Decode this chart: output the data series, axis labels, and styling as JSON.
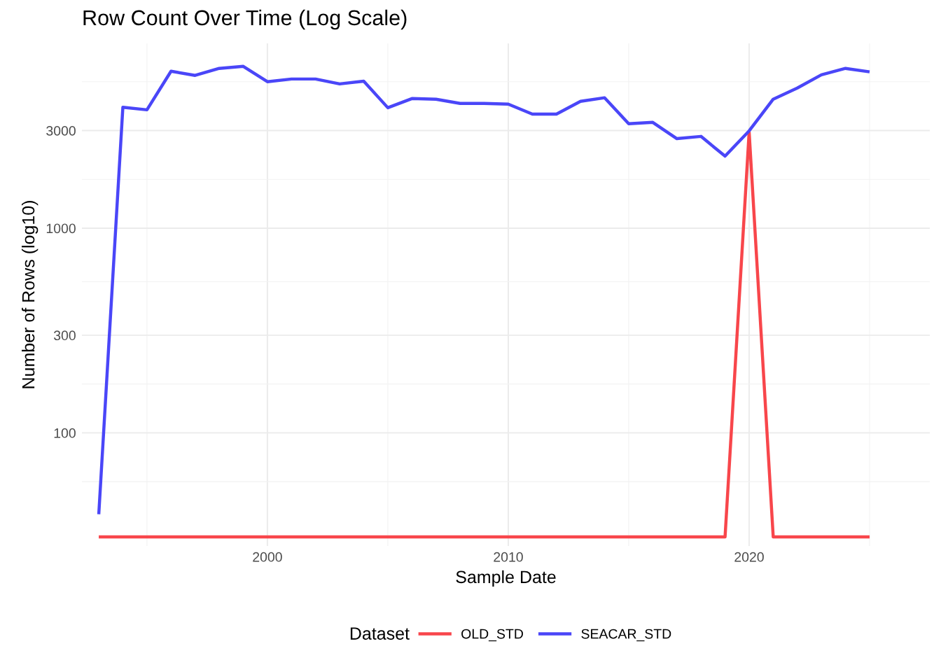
{
  "chart_data": {
    "type": "line",
    "title": "Row Count Over Time (Log Scale)",
    "xlabel": "Sample Date",
    "ylabel": "Number of Rows (log10)",
    "legend_title": "Dataset",
    "legend": "bottom",
    "grid": true,
    "log": "y",
    "x": [
      1993,
      1994,
      1995,
      1996,
      1997,
      1998,
      1999,
      2000,
      2001,
      2002,
      2003,
      2004,
      2005,
      2006,
      2007,
      2008,
      2009,
      2010,
      2011,
      2012,
      2013,
      2014,
      2015,
      2016,
      2017,
      2018,
      2019,
      2020,
      2021,
      2022,
      2023,
      2024,
      2025
    ],
    "xlim": [
      1992.3,
      2027.5
    ],
    "xticks": [
      2000,
      2010,
      2020
    ],
    "ylim": [
      28,
      8000
    ],
    "yticks": [
      100,
      300,
      1000,
      3000
    ],
    "series": [
      {
        "name": "OLD_STD",
        "color": "#f8464b",
        "values": [
          31,
          31,
          31,
          31,
          31,
          31,
          31,
          31,
          31,
          31,
          31,
          31,
          31,
          31,
          31,
          31,
          31,
          31,
          31,
          31,
          31,
          31,
          31,
          31,
          31,
          31,
          31,
          2950,
          31,
          31,
          31,
          31,
          31
        ]
      },
      {
        "name": "SEACAR_STD",
        "color": "#4a46f8",
        "values": [
          40,
          3900,
          3790,
          5850,
          5580,
          6040,
          6180,
          5200,
          5360,
          5360,
          5070,
          5230,
          3880,
          4300,
          4270,
          4070,
          4070,
          4040,
          3610,
          3610,
          4170,
          4340,
          3240,
          3290,
          2740,
          2810,
          2250,
          2990,
          4270,
          4840,
          5620,
          6040,
          5810
        ]
      }
    ]
  }
}
